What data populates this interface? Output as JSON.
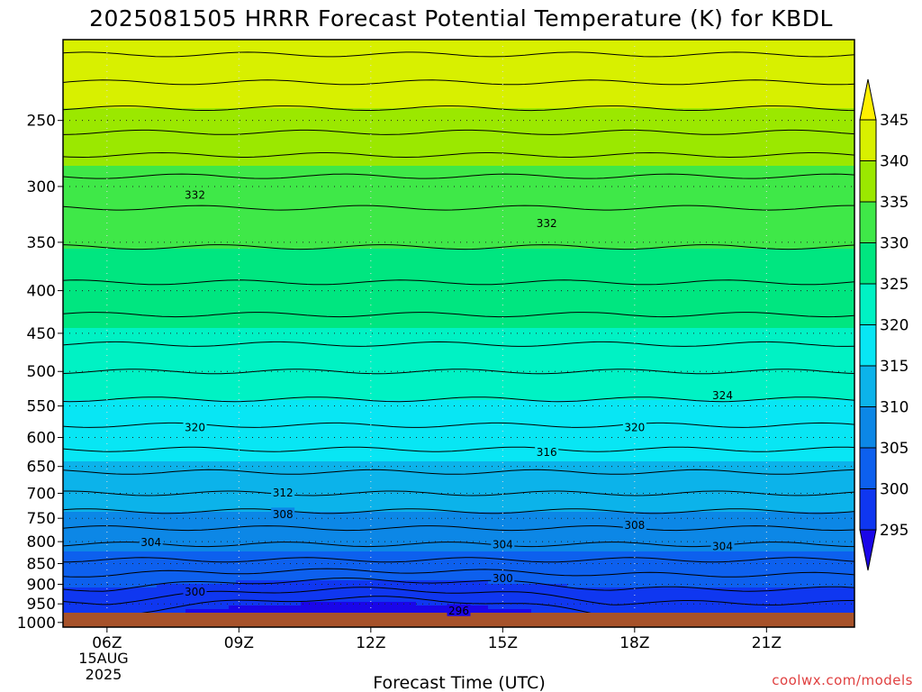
{
  "chart_data": {
    "type": "heatmap",
    "title": "2025081505 HRRR Forecast Potential Temperature (K) for KBDL",
    "xlabel": "Forecast Time (UTC)",
    "ylabel": "",
    "x_ticks": [
      "06Z",
      "09Z",
      "12Z",
      "15Z",
      "18Z",
      "21Z"
    ],
    "date_label": [
      "15AUG",
      "2025"
    ],
    "x_range_hours": [
      5,
      23
    ],
    "y_ticks": [
      250,
      300,
      350,
      400,
      450,
      500,
      550,
      600,
      650,
      700,
      750,
      800,
      850,
      900,
      950,
      1000
    ],
    "y_range_hpa": [
      200,
      1013
    ],
    "y_scale": "log",
    "colorbar": {
      "levels": [
        295,
        300,
        305,
        310,
        315,
        320,
        325,
        330,
        335,
        340,
        345
      ],
      "colors": [
        "#1a06e8",
        "#0f37f0",
        "#0d60ee",
        "#0c87e6",
        "#0cb3ea",
        "#08e6f4",
        "#00f2c4",
        "#00e680",
        "#3fe848",
        "#9be800",
        "#d8f000",
        "#fff000"
      ],
      "extend": "both"
    },
    "contour_labels": [
      {
        "value": "332",
        "hour": 8.0,
        "p": 307
      },
      {
        "value": "332",
        "hour": 16.0,
        "p": 332
      },
      {
        "value": "324",
        "hour": 20.0,
        "p": 534
      },
      {
        "value": "320",
        "hour": 8.0,
        "p": 583
      },
      {
        "value": "320",
        "hour": 18.0,
        "p": 583
      },
      {
        "value": "316",
        "hour": 16.0,
        "p": 624
      },
      {
        "value": "312",
        "hour": 10.0,
        "p": 698
      },
      {
        "value": "308",
        "hour": 10.0,
        "p": 741
      },
      {
        "value": "308",
        "hour": 18.0,
        "p": 764
      },
      {
        "value": "304",
        "hour": 7.0,
        "p": 801
      },
      {
        "value": "304",
        "hour": 15.0,
        "p": 806
      },
      {
        "value": "304",
        "hour": 20.0,
        "p": 810
      },
      {
        "value": "300",
        "hour": 8.0,
        "p": 918
      },
      {
        "value": "300",
        "hour": 15.0,
        "p": 885
      },
      {
        "value": "296",
        "hour": 14.0,
        "p": 968
      }
    ],
    "surface_pressure_hpa": 1000,
    "grid": true
  },
  "credit": "coolwx.com/models"
}
